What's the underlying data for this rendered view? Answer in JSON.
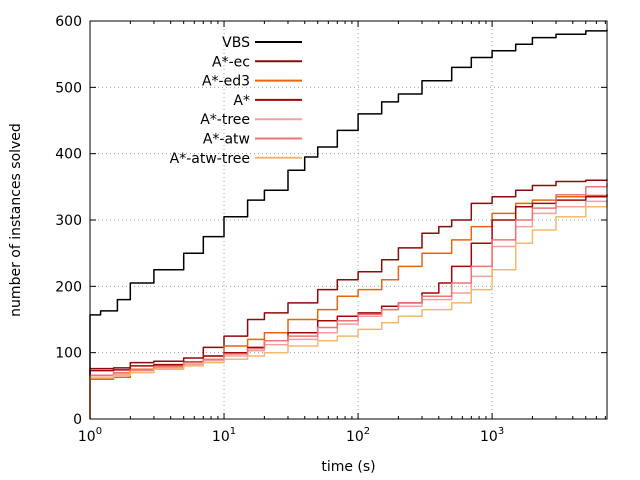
{
  "chart_data": {
    "type": "line",
    "title": "",
    "xlabel": "time (s)",
    "ylabel": "number of instances solved",
    "xscale": "log",
    "xlim": [
      1,
      7200
    ],
    "ylim": [
      0,
      600
    ],
    "x_ticks": [
      {
        "value": 1,
        "base": "10",
        "exp": "0"
      },
      {
        "value": 10,
        "base": "10",
        "exp": "1"
      },
      {
        "value": 100,
        "base": "10",
        "exp": "2"
      },
      {
        "value": 1000,
        "base": "10",
        "exp": "3"
      }
    ],
    "y_ticks": [
      {
        "value": 0,
        "label": "0"
      },
      {
        "value": 100,
        "label": "100"
      },
      {
        "value": 200,
        "label": "200"
      },
      {
        "value": 300,
        "label": "300"
      },
      {
        "value": 400,
        "label": "400"
      },
      {
        "value": 500,
        "label": "500"
      },
      {
        "value": 600,
        "label": "600"
      }
    ],
    "grid": true,
    "legend_position": "top-left",
    "series": [
      {
        "name": "VBS",
        "color": "#000000",
        "x": [
          1,
          1.2,
          1.6,
          2,
          3,
          5,
          7,
          10,
          15,
          20,
          30,
          40,
          50,
          70,
          100,
          150,
          200,
          300,
          500,
          700,
          1000,
          1500,
          2000,
          3000,
          5000,
          7200
        ],
        "y": [
          157,
          163,
          180,
          205,
          225,
          250,
          275,
          305,
          330,
          345,
          375,
          395,
          410,
          435,
          460,
          478,
          490,
          510,
          530,
          545,
          555,
          565,
          575,
          580,
          585,
          587
        ]
      },
      {
        "name": "A*-ec",
        "color": "#8b0a0a",
        "x": [
          1,
          1.5,
          2,
          3,
          5,
          7,
          10,
          15,
          20,
          30,
          50,
          70,
          100,
          150,
          200,
          300,
          400,
          500,
          700,
          1000,
          1500,
          2000,
          3000,
          5000,
          7200
        ],
        "y": [
          76,
          77,
          85,
          87,
          92,
          108,
          125,
          150,
          160,
          175,
          195,
          210,
          222,
          240,
          258,
          280,
          290,
          300,
          325,
          335,
          345,
          352,
          358,
          360,
          361
        ]
      },
      {
        "name": "A*-ed3",
        "color": "#e8650f",
        "x": [
          1,
          1.5,
          2,
          3,
          5,
          7,
          10,
          15,
          20,
          30,
          50,
          70,
          100,
          150,
          200,
          300,
          500,
          700,
          1000,
          1500,
          2000,
          3000,
          5000,
          7200
        ],
        "y": [
          60,
          63,
          75,
          80,
          85,
          95,
          110,
          120,
          130,
          150,
          165,
          185,
          195,
          210,
          230,
          250,
          270,
          290,
          310,
          325,
          330,
          335,
          337,
          339
        ]
      },
      {
        "name": "A*",
        "color": "#a00808",
        "x": [
          1,
          1.5,
          2,
          3,
          5,
          7,
          10,
          15,
          20,
          30,
          50,
          70,
          100,
          150,
          200,
          300,
          400,
          500,
          700,
          1000,
          1500,
          2000,
          3000,
          5000,
          7200
        ],
        "y": [
          73,
          74,
          80,
          82,
          86,
          95,
          100,
          108,
          118,
          130,
          148,
          155,
          160,
          170,
          175,
          190,
          205,
          230,
          265,
          300,
          320,
          325,
          330,
          335,
          338
        ]
      },
      {
        "name": "A*-tree",
        "color": "#f4a0a0",
        "x": [
          1,
          1.5,
          2,
          3,
          5,
          7,
          10,
          15,
          20,
          30,
          50,
          70,
          100,
          150,
          200,
          300,
          500,
          700,
          1000,
          1500,
          2000,
          3000,
          5000,
          7200
        ],
        "y": [
          65,
          68,
          73,
          77,
          82,
          88,
          95,
          103,
          112,
          120,
          130,
          143,
          155,
          165,
          170,
          180,
          190,
          215,
          260,
          290,
          310,
          320,
          328,
          330
        ]
      },
      {
        "name": "A*-atw",
        "color": "#ec7474",
        "x": [
          1,
          1.5,
          2,
          3,
          5,
          7,
          10,
          15,
          20,
          30,
          50,
          70,
          100,
          150,
          200,
          300,
          500,
          700,
          1000,
          1500,
          2000,
          3000,
          5000,
          7200
        ],
        "y": [
          66,
          70,
          74,
          79,
          85,
          90,
          98,
          106,
          118,
          125,
          138,
          148,
          158,
          165,
          175,
          185,
          205,
          230,
          270,
          300,
          318,
          338,
          350,
          355
        ]
      },
      {
        "name": "A*-atw-tree",
        "color": "#f3b86e",
        "x": [
          1,
          1.5,
          2,
          3,
          5,
          7,
          10,
          15,
          20,
          30,
          50,
          70,
          100,
          150,
          200,
          300,
          500,
          700,
          1000,
          1500,
          2000,
          3000,
          5000,
          7200
        ],
        "y": [
          62,
          66,
          70,
          75,
          80,
          85,
          90,
          95,
          100,
          110,
          118,
          125,
          135,
          145,
          155,
          165,
          175,
          195,
          225,
          265,
          285,
          305,
          320,
          330
        ]
      }
    ]
  }
}
